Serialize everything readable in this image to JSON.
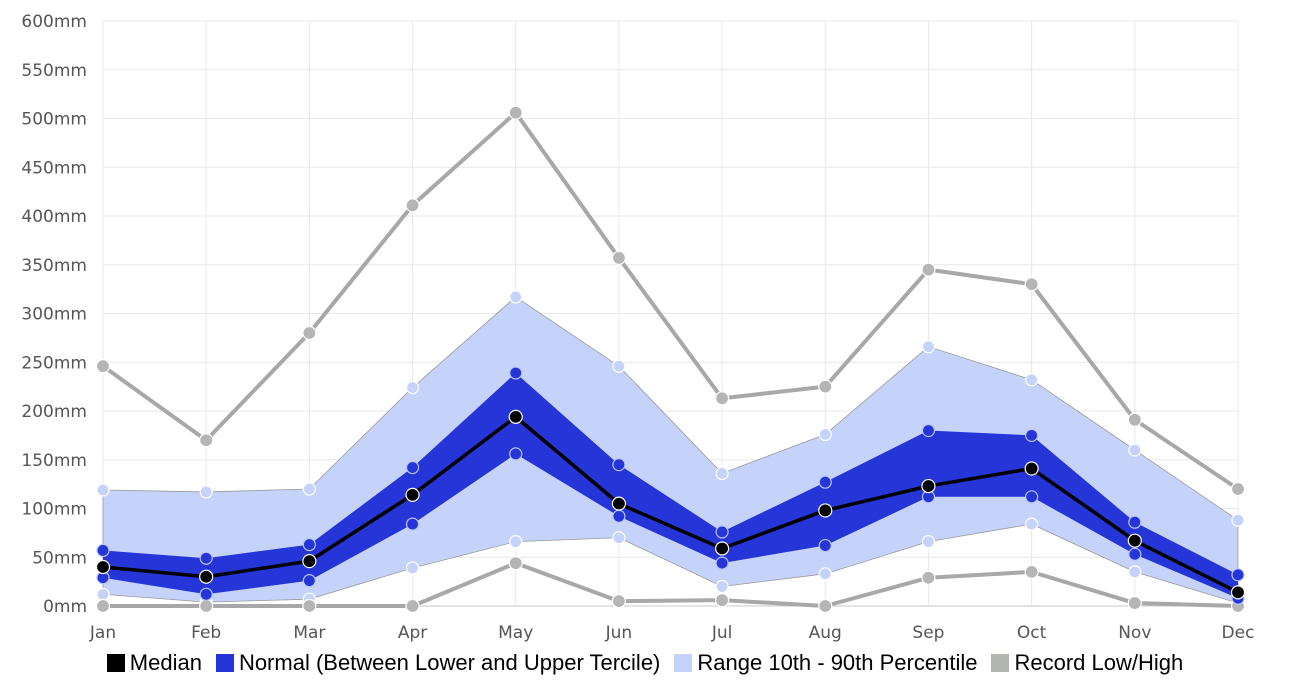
{
  "chart_data": {
    "type": "area",
    "categories": [
      "Jan",
      "Feb",
      "Mar",
      "Apr",
      "May",
      "Jun",
      "Jul",
      "Aug",
      "Sep",
      "Oct",
      "Nov",
      "Dec"
    ],
    "y_tick_labels": [
      "0mm",
      "50mm",
      "100mm",
      "150mm",
      "200mm",
      "250mm",
      "300mm",
      "350mm",
      "400mm",
      "450mm",
      "500mm",
      "550mm",
      "600mm"
    ],
    "ylim": [
      0,
      600
    ],
    "unit": "mm",
    "grid": true,
    "legend_position": "bottom",
    "series": [
      {
        "name": "Record Low/High",
        "kind": "record_high",
        "values": [
          246,
          170,
          280,
          411,
          506,
          357,
          213,
          225,
          345,
          330,
          191,
          120
        ]
      },
      {
        "name": "Range 10th - 90th Percentile",
        "kind": "p90",
        "values": [
          119,
          117,
          120,
          224,
          317,
          246,
          136,
          176,
          266,
          232,
          160,
          88
        ]
      },
      {
        "name": "Normal (Between Lower and Upper Tercile)",
        "kind": "upper_tercile",
        "values": [
          57,
          49,
          63,
          142,
          239,
          145,
          76,
          127,
          180,
          175,
          86,
          32
        ]
      },
      {
        "name": "Median",
        "kind": "median",
        "values": [
          40,
          30,
          46,
          114,
          194,
          105,
          59,
          98,
          123,
          141,
          67,
          14
        ]
      },
      {
        "name": "Normal (Between Lower and Upper Tercile)",
        "kind": "lower_tercile",
        "values": [
          29,
          12,
          26,
          84,
          156,
          92,
          44,
          62,
          112,
          112,
          53,
          8
        ]
      },
      {
        "name": "Range 10th - 90th Percentile",
        "kind": "p10",
        "values": [
          12,
          4,
          7,
          39,
          66,
          70,
          20,
          33,
          66,
          84,
          35,
          3
        ]
      },
      {
        "name": "Record Low/High",
        "kind": "record_low",
        "values": [
          0,
          0,
          0,
          0,
          44,
          5,
          6,
          0,
          29,
          35,
          3,
          0
        ]
      }
    ],
    "legend": [
      {
        "label": "Median",
        "color": "#000000"
      },
      {
        "label": "Normal (Between Lower and Upper Tercile)",
        "color": "#2535d8"
      },
      {
        "label": "Range 10th - 90th Percentile",
        "color": "#c5d3fa"
      },
      {
        "label": "Record Low/High",
        "color": "#b2b5b0"
      }
    ]
  },
  "colors": {
    "percentile_band": "#c5d3fa",
    "tercile_band": "#2535d8",
    "median_line": "#000000",
    "record_line": "#a8a8a8",
    "grid": "#e8e8e8"
  }
}
